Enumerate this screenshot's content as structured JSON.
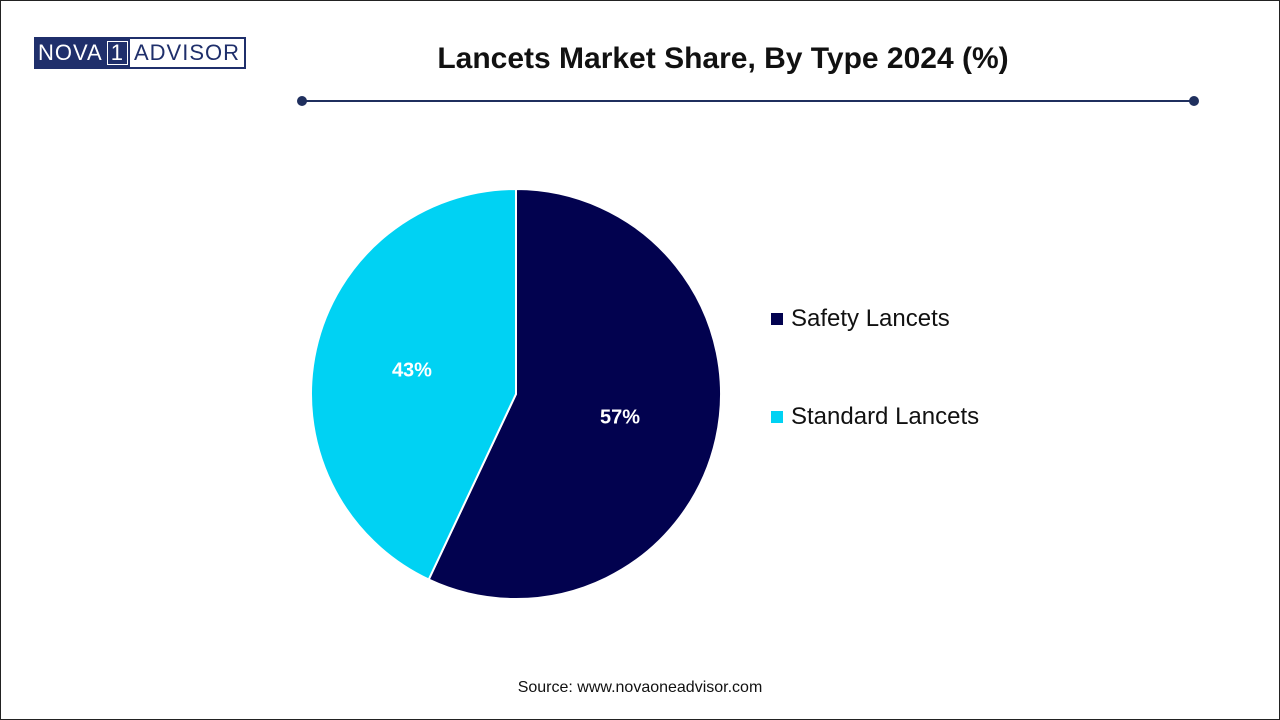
{
  "brand": {
    "logo_left": "NOVA",
    "logo_number": "1",
    "logo_right": "ADVISOR",
    "brand_color": "#1f2f6b"
  },
  "header": {
    "title": "Lancets Market Share, By Type 2024 (%)"
  },
  "chart_data": {
    "type": "pie",
    "title": "Lancets Market Share, By Type 2024 (%)",
    "slices": [
      {
        "name": "Safety Lancets",
        "value": 57,
        "label": "57%",
        "color": "#02024f"
      },
      {
        "name": "Standard Lancets",
        "value": 43,
        "label": "43%",
        "color": "#00d2f3"
      }
    ],
    "start_angle": "12 o'clock",
    "direction": "clockwise",
    "legend_position": "right"
  },
  "footer": {
    "source": "Source: www.novaoneadvisor.com"
  }
}
